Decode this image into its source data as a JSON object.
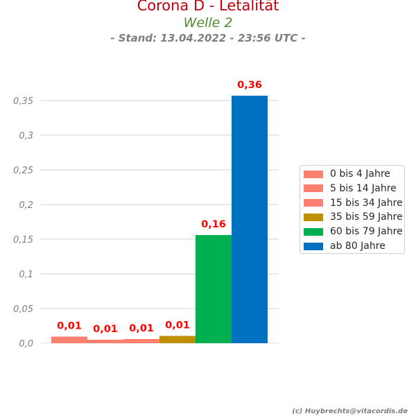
{
  "chart_data": {
    "type": "bar",
    "title": "Corona D - Letalität",
    "subtitle": "Welle 2",
    "stand": "- Stand: 13.04.2022 - 23:56 UTC -",
    "ylim": [
      0,
      0.375
    ],
    "yticks": [
      0,
      0.05,
      0.1,
      0.15,
      0.2,
      0.25,
      0.3,
      0.35
    ],
    "ytick_labels": [
      "0,0",
      "0,05",
      "0,1",
      "0,15",
      "0,2",
      "0,25",
      "0,3",
      "0,35"
    ],
    "grid": true,
    "legend_position": "right",
    "categories": [
      "0 bis 4 Jahre",
      "5 bis 14 Jahre",
      "15 bis 34 Jahre",
      "35 bis 59 Jahre",
      "60 bis 79 Jahre",
      "ab 80 Jahre"
    ],
    "values": [
      0.0095,
      0.005,
      0.006,
      0.0105,
      0.156,
      0.357
    ],
    "data_labels": [
      "0,01",
      "0,01",
      "0,01",
      "0,01",
      "0,16",
      "0,36"
    ],
    "colors": [
      "#fd7f6f",
      "#fd7f6f",
      "#fd7f6f",
      "#c08f00",
      "#00b050",
      "#0070c0"
    ],
    "label_color": "#ff0000"
  },
  "credit": "(c) Huybrechts@vitacordis.de"
}
